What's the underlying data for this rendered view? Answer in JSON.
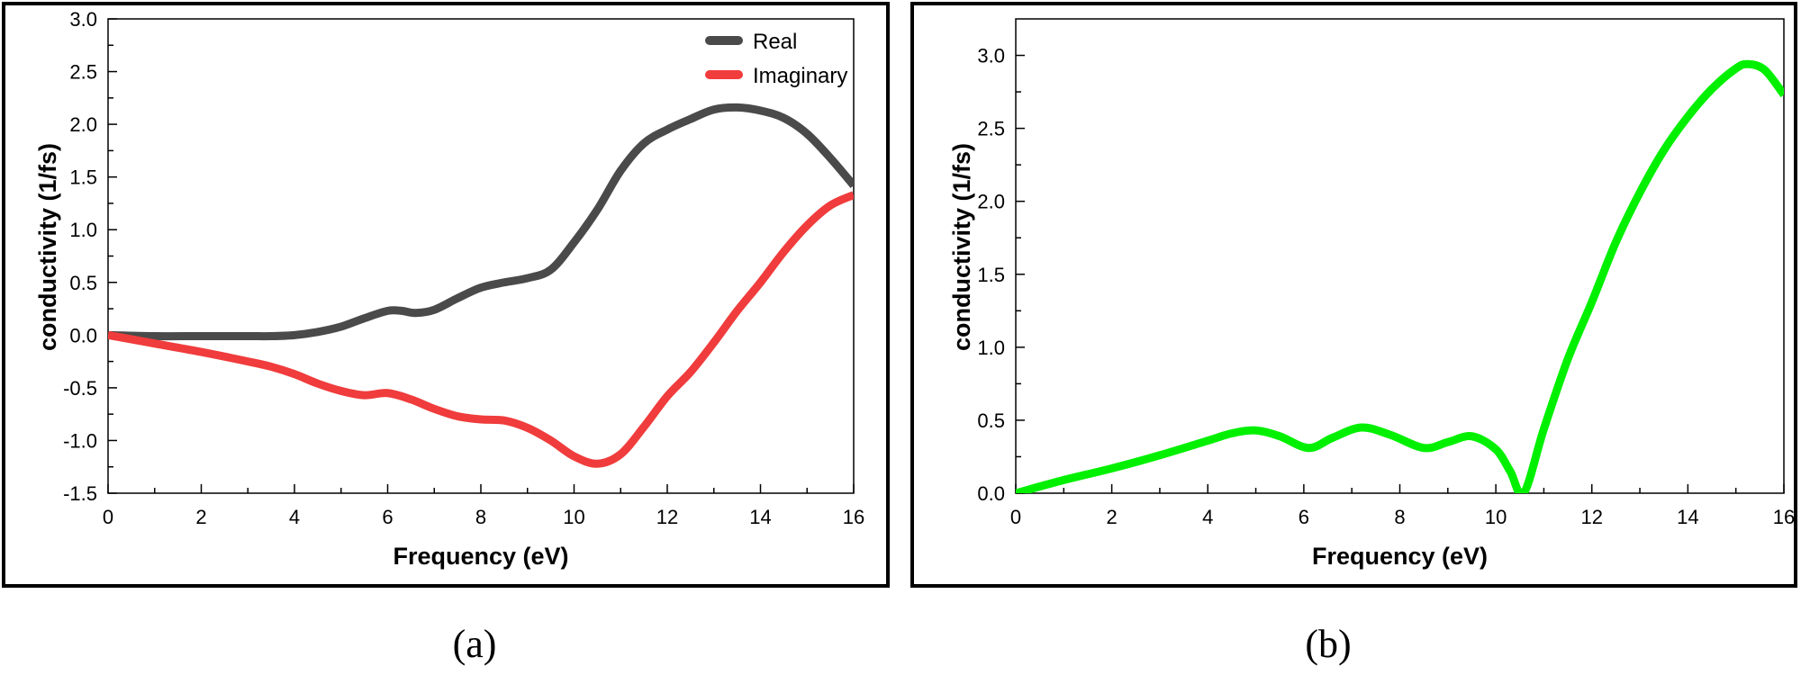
{
  "panels": [
    {
      "label": "(a)"
    },
    {
      "label": "(b)"
    }
  ],
  "colors": {
    "real": "#4a4a4a",
    "imaginary": "#f03c3c",
    "green": "#00f000",
    "axis": "#000000"
  },
  "chart_data": [
    {
      "type": "line",
      "panel": "(a)",
      "title": "",
      "xlabel": "Frequency (eV)",
      "ylabel": "conductivity (1/fs)",
      "xlim": [
        0,
        16
      ],
      "ylim": [
        -1.5,
        3.0
      ],
      "xticks": [
        0,
        2,
        4,
        6,
        8,
        10,
        12,
        14,
        16
      ],
      "yticks": [
        -1.5,
        -1.0,
        -0.5,
        0.0,
        0.5,
        1.0,
        1.5,
        2.0,
        2.5,
        3.0
      ],
      "ytick_labels": [
        "-1.5",
        "-1.0",
        "-0.5",
        "0.0",
        "0.5",
        "1.0",
        "1.5",
        "2.0",
        "2.5",
        "3.0"
      ],
      "grid": false,
      "legend_position": "upper right",
      "series": [
        {
          "name": "Real",
          "color": "#4a4a4a",
          "x": [
            0,
            1,
            2,
            3,
            3.5,
            4,
            4.5,
            5,
            5.5,
            6,
            6.3,
            6.6,
            7,
            7.5,
            8,
            8.5,
            9,
            9.5,
            10,
            10.5,
            11,
            11.5,
            12,
            12.5,
            13,
            13.5,
            14,
            14.5,
            15,
            15.5,
            16
          ],
          "y": [
            0.0,
            -0.01,
            -0.01,
            -0.01,
            -0.01,
            0.0,
            0.03,
            0.08,
            0.16,
            0.23,
            0.23,
            0.21,
            0.24,
            0.35,
            0.45,
            0.5,
            0.54,
            0.62,
            0.88,
            1.19,
            1.56,
            1.82,
            1.95,
            2.05,
            2.14,
            2.16,
            2.13,
            2.06,
            1.91,
            1.68,
            1.42
          ]
        },
        {
          "name": "Imaginary",
          "color": "#f03c3c",
          "x": [
            0,
            1,
            2,
            3,
            3.5,
            4,
            4.5,
            5,
            5.5,
            6,
            6.5,
            7,
            7.5,
            8,
            8.5,
            9,
            9.5,
            10,
            10.5,
            11,
            11.5,
            12,
            12.5,
            13,
            13.5,
            14,
            14.5,
            15,
            15.5,
            16
          ],
          "y": [
            0.0,
            -0.08,
            -0.16,
            -0.25,
            -0.3,
            -0.37,
            -0.46,
            -0.53,
            -0.57,
            -0.55,
            -0.61,
            -0.7,
            -0.77,
            -0.8,
            -0.81,
            -0.88,
            -1.0,
            -1.15,
            -1.22,
            -1.13,
            -0.87,
            -0.58,
            -0.35,
            -0.07,
            0.23,
            0.5,
            0.79,
            1.04,
            1.23,
            1.33
          ]
        }
      ]
    },
    {
      "type": "line",
      "panel": "(b)",
      "title": "",
      "xlabel": "Frequency (eV)",
      "ylabel": "conductivity (1/fs)",
      "xlim": [
        0,
        16
      ],
      "ylim": [
        0.0,
        3.25
      ],
      "xticks": [
        0,
        2,
        4,
        6,
        8,
        10,
        12,
        14,
        16
      ],
      "yticks": [
        0.0,
        0.5,
        1.0,
        1.5,
        2.0,
        2.5,
        3.0
      ],
      "ytick_labels": [
        "0.0",
        "0.5",
        "1.0",
        "1.5",
        "2.0",
        "2.5",
        "3.0"
      ],
      "grid": false,
      "series": [
        {
          "name": "conductivity",
          "color": "#00f000",
          "x": [
            0,
            1,
            2,
            3,
            4,
            4.5,
            5,
            5.5,
            6.1,
            6.6,
            7.2,
            7.8,
            8.5,
            9.0,
            9.5,
            10.0,
            10.3,
            10.58,
            11,
            11.5,
            12,
            12.5,
            13,
            13.5,
            14,
            14.5,
            15,
            15.25,
            15.6,
            16
          ],
          "y": [
            0.0,
            0.09,
            0.17,
            0.26,
            0.36,
            0.41,
            0.43,
            0.39,
            0.31,
            0.38,
            0.45,
            0.4,
            0.31,
            0.35,
            0.39,
            0.3,
            0.15,
            0.0,
            0.44,
            0.92,
            1.31,
            1.72,
            2.06,
            2.35,
            2.58,
            2.77,
            2.91,
            2.94,
            2.9,
            2.73
          ]
        }
      ]
    }
  ]
}
